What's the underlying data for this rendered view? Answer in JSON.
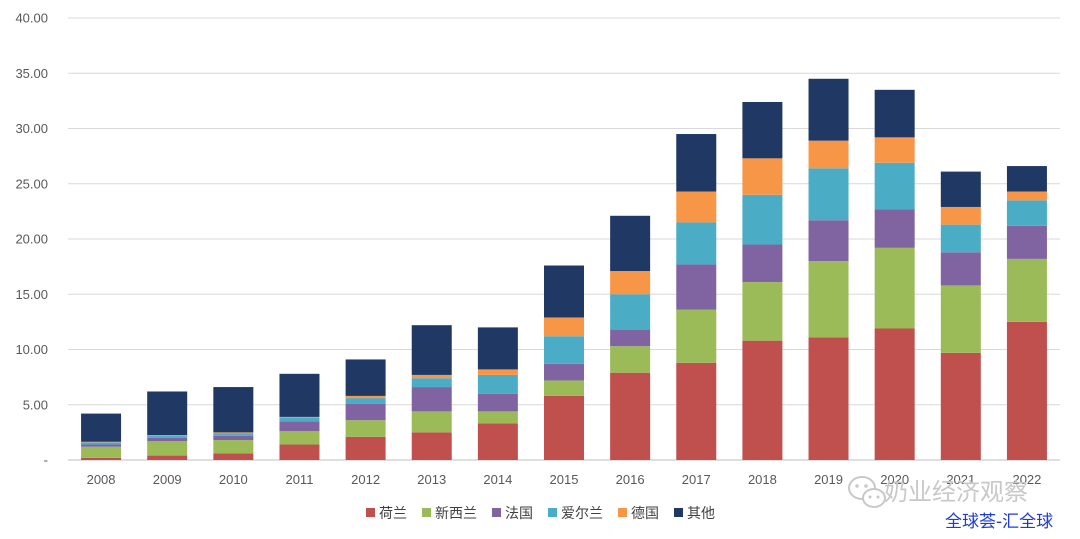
{
  "chart_data": {
    "type": "bar",
    "stacked": true,
    "categories": [
      "2008",
      "2009",
      "2010",
      "2011",
      "2012",
      "2013",
      "2014",
      "2015",
      "2016",
      "2017",
      "2018",
      "2019",
      "2020",
      "2021",
      "2022"
    ],
    "ylim": [
      0,
      40
    ],
    "yticks": [
      "-",
      "5.00",
      "10.00",
      "15.00",
      "20.00",
      "25.00",
      "30.00",
      "35.00",
      "40.00"
    ],
    "grid": true,
    "legend_position": "bottom",
    "series": [
      {
        "name": "荷兰",
        "color": "#c0504d",
        "values": [
          0.2,
          0.4,
          0.6,
          1.4,
          2.1,
          2.5,
          3.3,
          5.8,
          7.9,
          8.8,
          10.8,
          11.1,
          11.9,
          9.7,
          12.5
        ]
      },
      {
        "name": "新西兰",
        "color": "#9bbb59",
        "values": [
          1.0,
          1.3,
          1.2,
          1.2,
          1.5,
          1.9,
          1.1,
          1.4,
          2.4,
          4.8,
          5.3,
          6.9,
          7.3,
          6.1,
          5.7
        ]
      },
      {
        "name": "法国",
        "color": "#8064a2",
        "values": [
          0.2,
          0.3,
          0.4,
          0.9,
          1.5,
          2.2,
          1.6,
          1.5,
          1.5,
          4.1,
          3.4,
          3.7,
          3.5,
          3.0,
          3.0
        ]
      },
      {
        "name": "爱尔兰",
        "color": "#4bacc6",
        "values": [
          0.2,
          0.2,
          0.2,
          0.3,
          0.5,
          0.8,
          1.7,
          2.5,
          3.2,
          3.8,
          4.5,
          4.7,
          4.2,
          2.5,
          2.3
        ]
      },
      {
        "name": "德国",
        "color": "#f79646",
        "values": [
          0.05,
          0.05,
          0.1,
          0.1,
          0.2,
          0.3,
          0.5,
          1.7,
          2.1,
          2.8,
          3.3,
          2.5,
          2.3,
          1.6,
          0.8
        ]
      },
      {
        "name": "其他",
        "color": "#1f3864",
        "values": [
          2.55,
          3.95,
          4.1,
          3.9,
          3.3,
          4.5,
          3.8,
          4.7,
          5.0,
          5.2,
          5.1,
          5.6,
          4.3,
          3.2,
          2.3
        ]
      }
    ]
  },
  "watermark": {
    "text": "奶业经济观察",
    "source": "全球荟-汇全球"
  }
}
